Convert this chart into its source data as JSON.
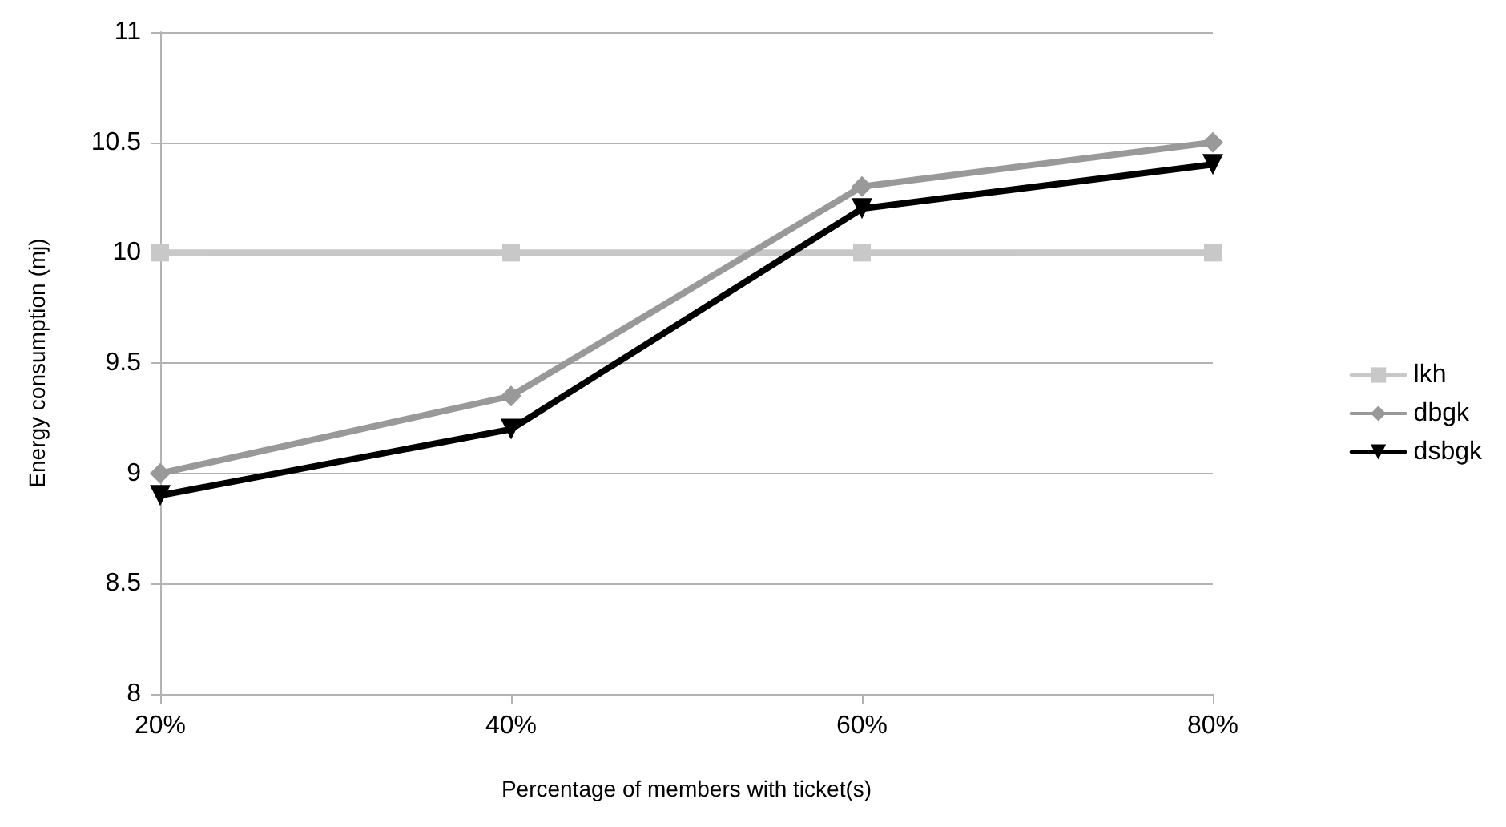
{
  "chart_data": {
    "type": "line",
    "xlabel": "Percentage of members with ticket(s)",
    "ylabel": "Energy consumption (mj)",
    "categories": [
      "20%",
      "40%",
      "60%",
      "80%"
    ],
    "series": [
      {
        "name": "lkh",
        "color": "#c8c8c8",
        "marker": "square",
        "values": [
          10,
          10,
          10,
          10
        ]
      },
      {
        "name": "dbgk",
        "color": "#999999",
        "marker": "diamond",
        "values": [
          9,
          9.35,
          10.3,
          10.5
        ]
      },
      {
        "name": "dsbgk",
        "color": "#000000",
        "marker": "triangle",
        "values": [
          8.9,
          9.2,
          10.2,
          10.4
        ]
      }
    ],
    "ylim": [
      8,
      11
    ],
    "yticks": [
      8,
      8.5,
      9,
      9.5,
      10,
      10.5,
      11
    ],
    "grid": "y",
    "legend": "right",
    "line_style": "solid"
  }
}
